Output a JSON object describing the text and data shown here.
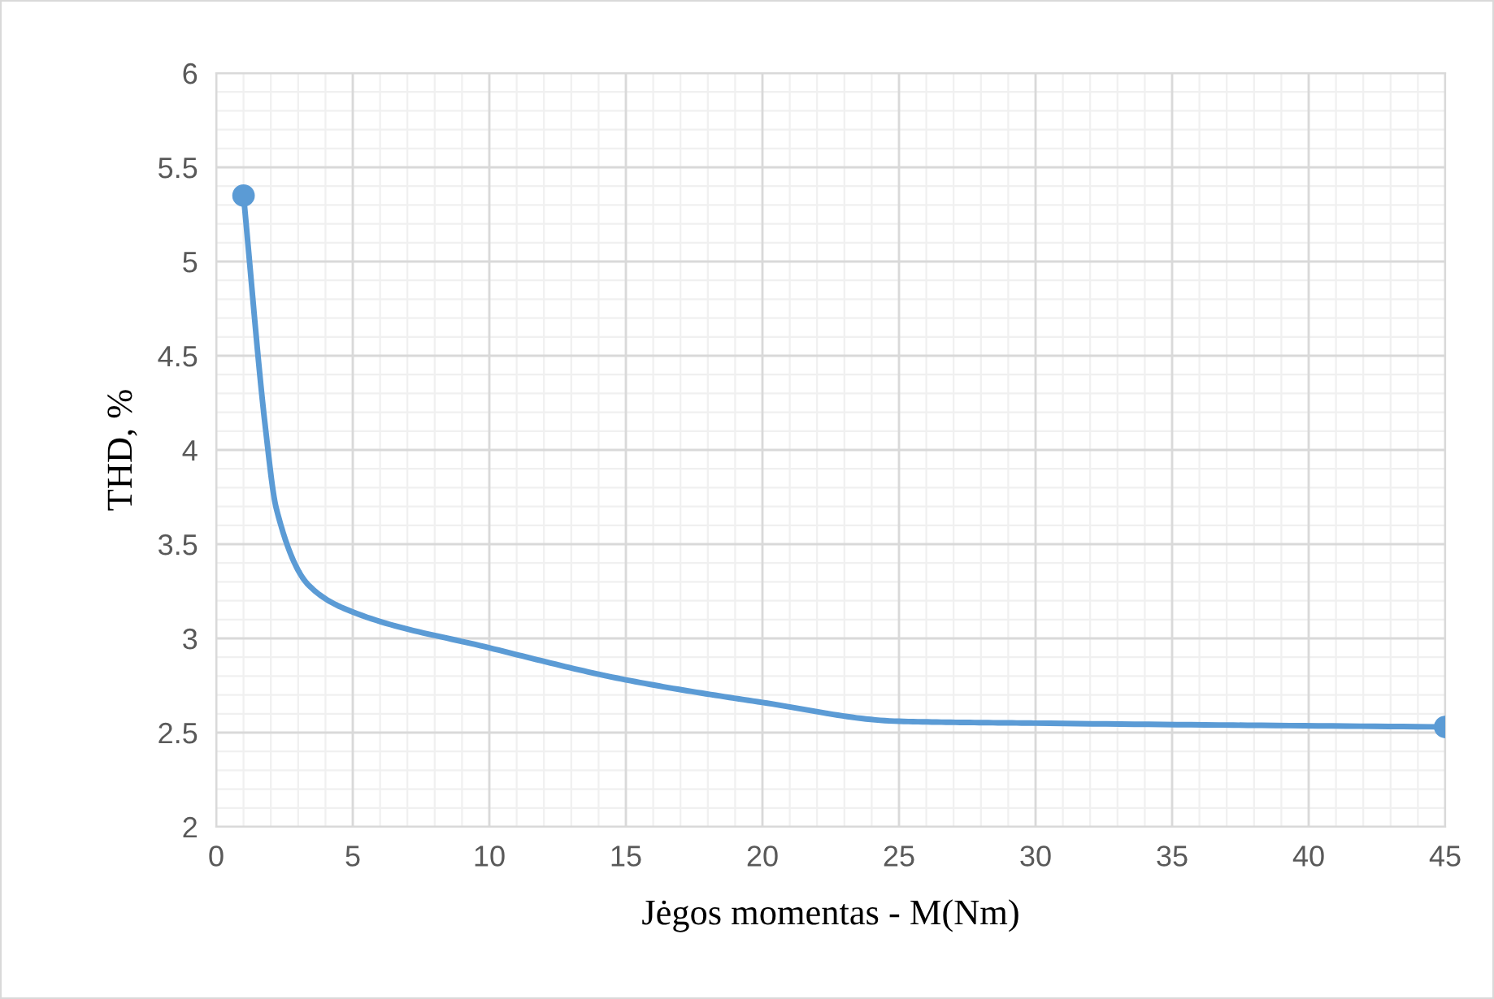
{
  "chart_data": {
    "type": "line",
    "xlabel": "Jėgos momentas - M(Nm)",
    "ylabel": "THD, %",
    "series": [
      {
        "color": "#5b9bd5",
        "x": [
          1,
          1.8,
          2.2,
          3.4,
          5,
          10,
          15,
          20,
          25,
          30,
          45
        ],
        "values": [
          5.35,
          4.12,
          3.69,
          3.28,
          3.14,
          2.95,
          2.78,
          2.66,
          2.56,
          2.55,
          2.53
        ]
      },
      {
        "type": "scatter",
        "color": "#5b9bd5",
        "x": [
          1,
          45
        ],
        "values": [
          5.35,
          2.53
        ],
        "marker": "circle"
      }
    ],
    "xlim": [
      0,
      45
    ],
    "xticks": [
      0,
      5,
      10,
      15,
      20,
      25,
      30,
      35,
      40,
      45
    ],
    "ylim": [
      2,
      6
    ],
    "yticks": [
      2,
      2.5,
      3,
      3.5,
      4,
      4.5,
      5,
      5.5,
      6
    ],
    "grid": true
  }
}
